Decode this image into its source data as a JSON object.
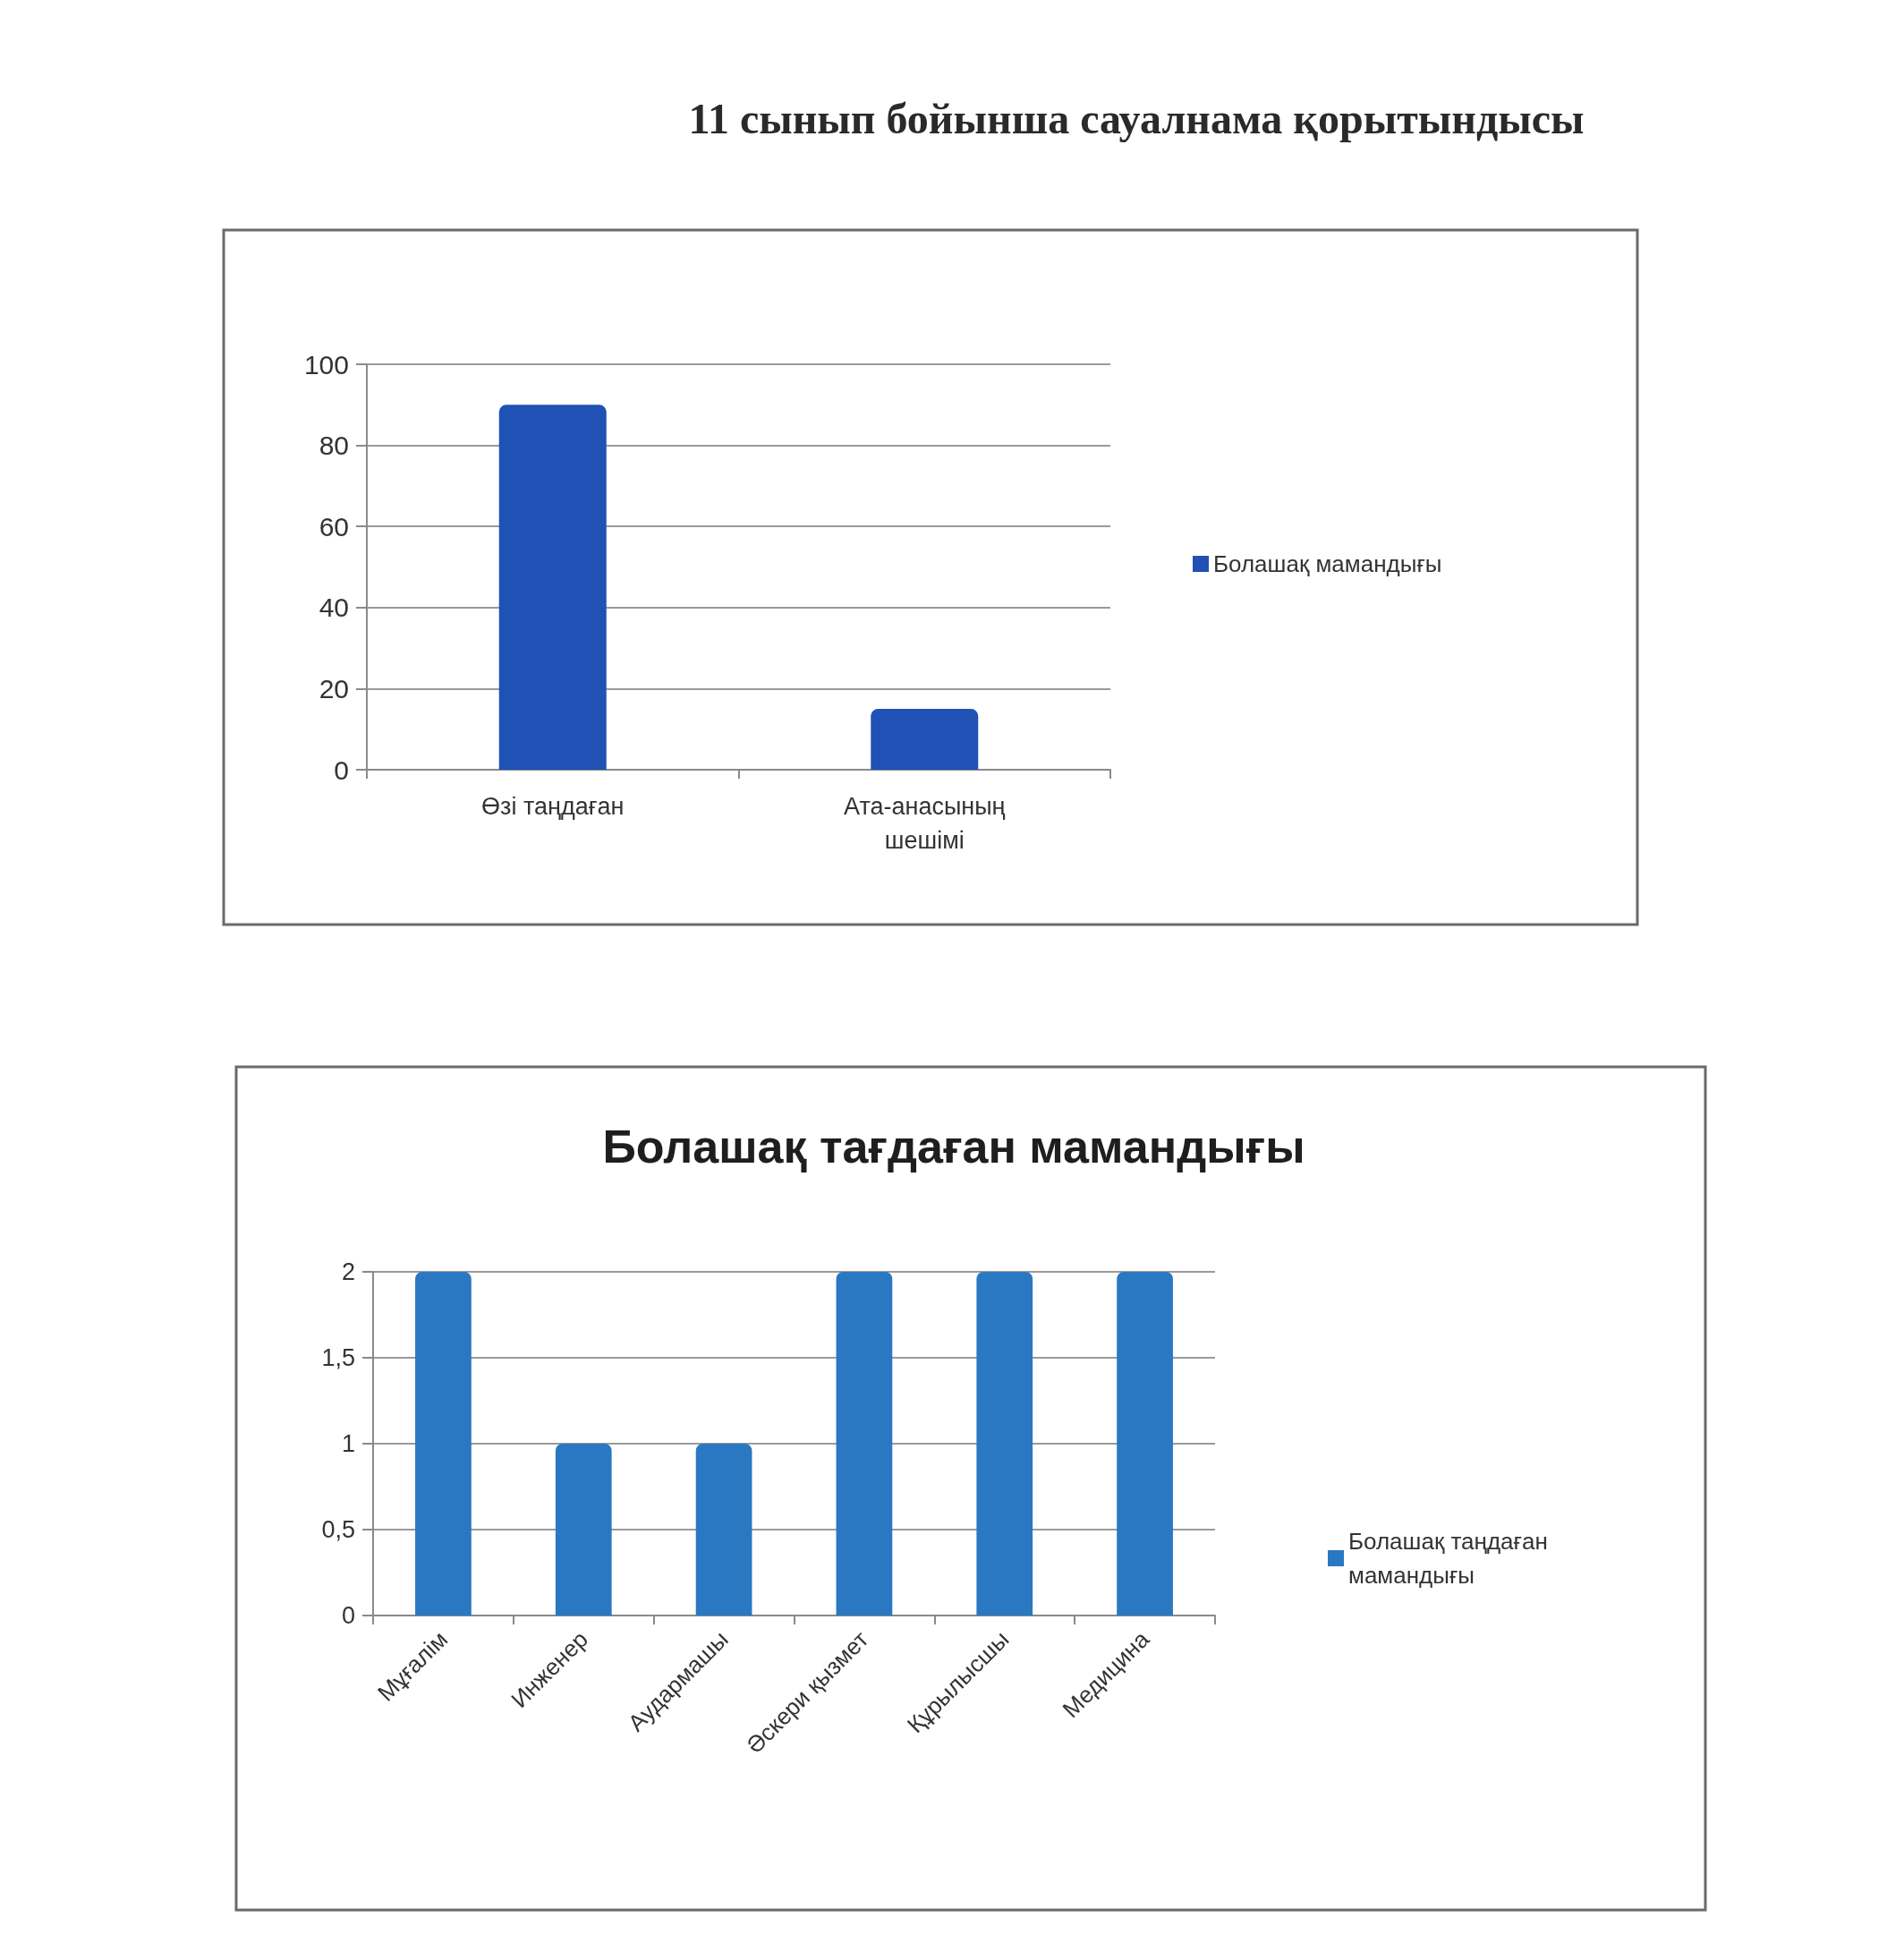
{
  "chart_data": [
    {
      "type": "bar",
      "title": "11 сынып бойынша сауалнама қорытындысы",
      "categories": [
        "Өзі таңдаған",
        "Ата-анасының шешімі"
      ],
      "series": [
        {
          "name": "Болашақ мамандығы",
          "color": "#1f52b4",
          "values": [
            90,
            15
          ]
        }
      ],
      "ylim": [
        0,
        100
      ],
      "yticks": [
        0,
        20,
        40,
        60,
        80,
        100
      ],
      "grid": "y",
      "legend": "right"
    },
    {
      "type": "bar",
      "title": "Болашақ тағдаған мамандығы",
      "categories": [
        "Мұғалім",
        "Инженер",
        "Аудармашы",
        "Әскери қызмет",
        "Құрылысшы",
        "Медицина"
      ],
      "series": [
        {
          "name": "Болашақ таңдаған мамандығы",
          "color": "#2a78c2",
          "values": [
            2,
            1,
            1,
            2,
            2,
            2
          ]
        }
      ],
      "ylim": [
        0,
        2
      ],
      "yticks": [
        0,
        {
          "value": 0.5,
          "label": "0,5"
        },
        1,
        {
          "value": 1.5,
          "label": "1,5"
        },
        2
      ],
      "grid": "y",
      "legend": "right"
    }
  ]
}
